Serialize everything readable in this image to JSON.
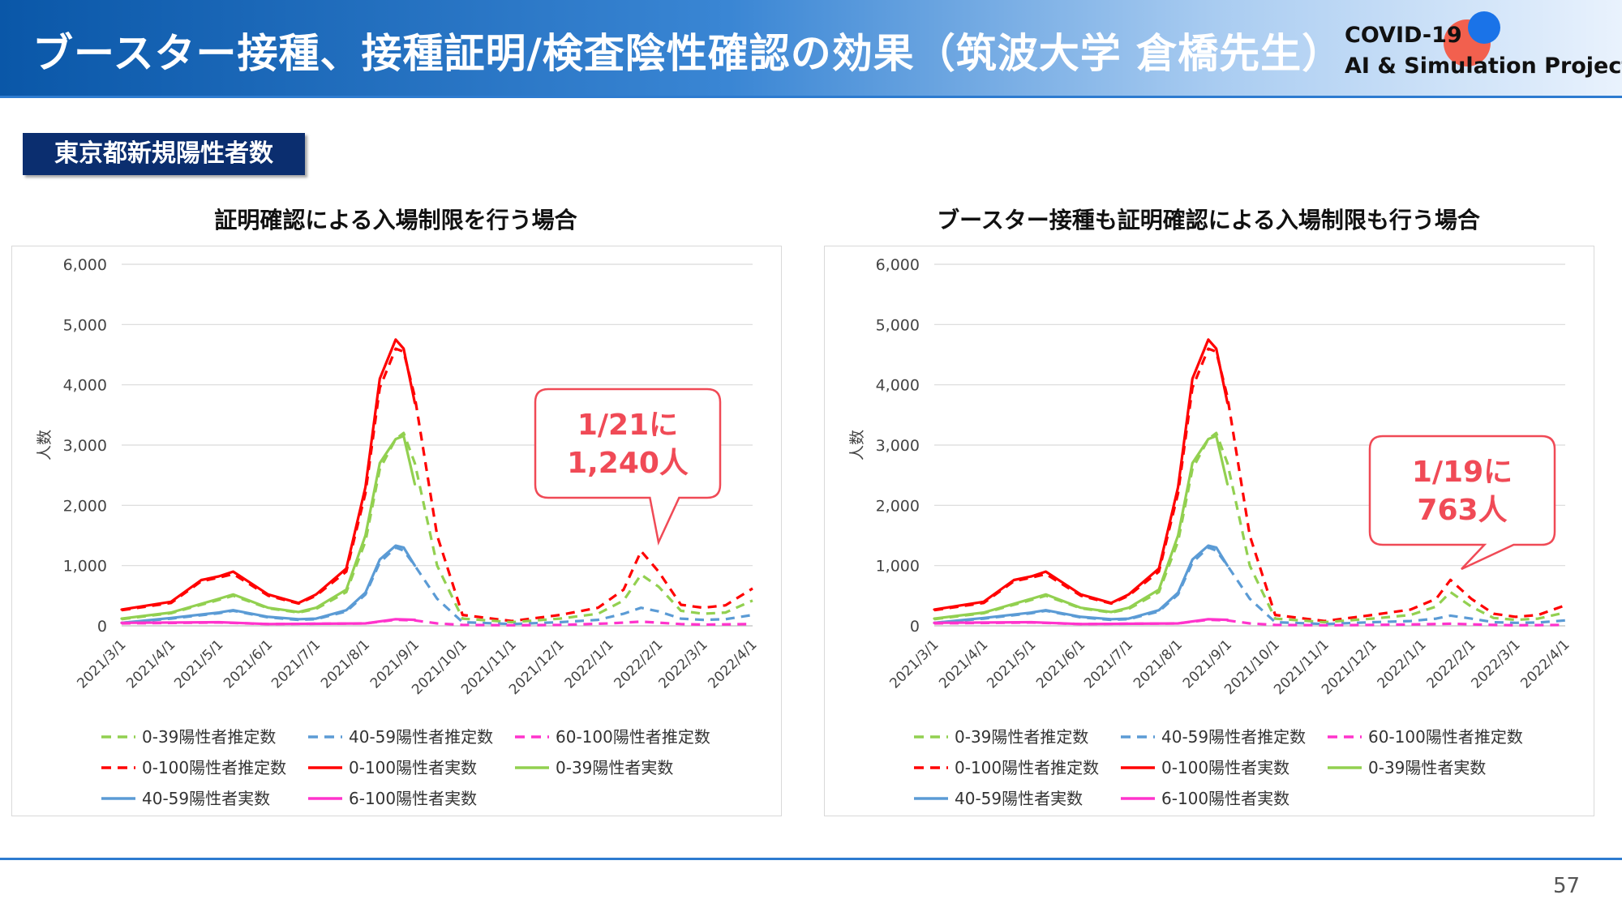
{
  "slide": {
    "title": "ブースター接種、接種証明/検査陰性確認の効果（筑波大学 倉橋先生）",
    "logo_line1": "COVID-19",
    "logo_line2": "AI & Simulation Project",
    "section_label": "東京都新規陽性者数",
    "page_number": "57"
  },
  "colors": {
    "green": "#92d050",
    "blue": "#5b9bd5",
    "magenta": "#ff33cc",
    "red": "#ff0000",
    "callout_border": "#f04a56",
    "callout_text": "#f04a56"
  },
  "legend": [
    {
      "label": "0-39陽性者推定数",
      "color": "#92d050",
      "style": "dashed"
    },
    {
      "label": "40-59陽性者推定数",
      "color": "#5b9bd5",
      "style": "dashed"
    },
    {
      "label": "60-100陽性者推定数",
      "color": "#ff33cc",
      "style": "dashed"
    },
    {
      "label": "0-100陽性者推定数",
      "color": "#ff0000",
      "style": "dashed"
    },
    {
      "label": "0-100陽性者実数",
      "color": "#ff0000",
      "style": "solid"
    },
    {
      "label": "0-39陽性者実数",
      "color": "#92d050",
      "style": "solid"
    },
    {
      "label": "40-59陽性者実数",
      "color": "#5b9bd5",
      "style": "solid"
    },
    {
      "label": "6-100陽性者実数",
      "color": "#ff33cc",
      "style": "solid"
    }
  ],
  "chart_data": [
    {
      "type": "line",
      "title": "証明確認による入場制限を行う場合",
      "ylabel": "人数",
      "ylim": [
        0,
        6000
      ],
      "yticks": [
        "0",
        "1,000",
        "2,000",
        "3,000",
        "4,000",
        "5,000",
        "6,000"
      ],
      "xticks": [
        "2021/3/1",
        "2021/4/1",
        "2021/5/1",
        "2021/6/1",
        "2021/7/1",
        "2021/8/1",
        "2021/9/1",
        "2021/10/1",
        "2021/11/1",
        "2021/12/1",
        "2022/1/1",
        "2022/2/1",
        "2022/3/1",
        "2022/4/1"
      ],
      "callout": {
        "line1": "1/21に",
        "line2": "1,240人",
        "date": "2022/1/21",
        "value": 1240
      },
      "series": [
        {
          "name": "0-100陽性者実数",
          "style": "solid",
          "color": "#ff0000",
          "x": [
            "2021/3/1",
            "2021/4/1",
            "2021/4/20",
            "2021/5/1",
            "2021/5/10",
            "2021/6/1",
            "2021/6/20",
            "2021/7/1",
            "2021/7/20",
            "2021/8/1",
            "2021/8/10",
            "2021/8/20",
            "2021/8/25",
            "2021/9/1"
          ],
          "y": [
            270,
            400,
            760,
            820,
            900,
            520,
            380,
            520,
            950,
            2300,
            4100,
            4750,
            4600,
            3700
          ]
        },
        {
          "name": "0-39陽性者実数",
          "style": "solid",
          "color": "#92d050",
          "x": [
            "2021/3/1",
            "2021/4/1",
            "2021/5/1",
            "2021/5/10",
            "2021/6/1",
            "2021/6/20",
            "2021/7/1",
            "2021/7/20",
            "2021/8/1",
            "2021/8/10",
            "2021/8/20",
            "2021/8/25",
            "2021/9/1"
          ],
          "y": [
            120,
            220,
            450,
            520,
            300,
            230,
            300,
            600,
            1500,
            2700,
            3100,
            3150,
            2350
          ]
        },
        {
          "name": "40-59陽性者実数",
          "style": "solid",
          "color": "#5b9bd5",
          "x": [
            "2021/3/1",
            "2021/4/1",
            "2021/5/1",
            "2021/5/10",
            "2021/6/1",
            "2021/6/20",
            "2021/7/1",
            "2021/7/20",
            "2021/8/1",
            "2021/8/10",
            "2021/8/20",
            "2021/8/25",
            "2021/9/1"
          ],
          "y": [
            50,
            130,
            220,
            260,
            150,
            110,
            120,
            260,
            550,
            1100,
            1330,
            1300,
            1000
          ]
        },
        {
          "name": "6-100陽性者実数",
          "style": "solid",
          "color": "#ff33cc",
          "x": [
            "2021/3/1",
            "2021/5/1",
            "2021/6/1",
            "2021/8/1",
            "2021/8/20",
            "2021/9/1"
          ],
          "y": [
            50,
            60,
            30,
            40,
            110,
            100
          ]
        },
        {
          "name": "0-100陽性者推定数",
          "style": "dashed",
          "color": "#ff0000",
          "x": [
            "2021/3/1",
            "2021/4/1",
            "2021/4/20",
            "2021/5/1",
            "2021/5/10",
            "2021/6/1",
            "2021/6/20",
            "2021/7/1",
            "2021/7/20",
            "2021/8/1",
            "2021/8/10",
            "2021/8/20",
            "2021/8/25",
            "2021/9/1",
            "2021/9/15",
            "2021/10/1",
            "2021/11/1",
            "2021/12/1",
            "2021/12/25",
            "2022/1/10",
            "2022/1/21",
            "2022/2/1",
            "2022/2/15",
            "2022/3/1",
            "2022/3/15",
            "2022/4/1"
          ],
          "y": [
            260,
            380,
            740,
            800,
            860,
            500,
            370,
            500,
            900,
            2200,
            3950,
            4600,
            4550,
            3800,
            1500,
            180,
            80,
            180,
            300,
            600,
            1240,
            900,
            350,
            300,
            340,
            620
          ]
        },
        {
          "name": "0-39陽性者推定数",
          "style": "dashed",
          "color": "#92d050",
          "x": [
            "2021/3/1",
            "2021/4/1",
            "2021/5/1",
            "2021/5/10",
            "2021/6/1",
            "2021/6/20",
            "2021/7/1",
            "2021/7/20",
            "2021/8/1",
            "2021/8/10",
            "2021/8/20",
            "2021/8/25",
            "2021/9/1",
            "2021/9/15",
            "2021/10/1",
            "2021/11/1",
            "2021/12/1",
            "2021/12/25",
            "2022/1/10",
            "2022/1/21",
            "2022/2/1",
            "2022/2/15",
            "2022/3/1",
            "2022/3/15",
            "2022/4/1"
          ],
          "y": [
            110,
            210,
            430,
            500,
            290,
            220,
            280,
            560,
            1400,
            2600,
            3100,
            3200,
            2700,
            1000,
            120,
            60,
            120,
            200,
            420,
            850,
            650,
            250,
            200,
            220,
            420
          ]
        },
        {
          "name": "40-59陽性者推定数",
          "style": "dashed",
          "color": "#5b9bd5",
          "x": [
            "2021/3/1",
            "2021/4/1",
            "2021/5/1",
            "2021/5/10",
            "2021/6/1",
            "2021/6/20",
            "2021/7/1",
            "2021/7/20",
            "2021/8/1",
            "2021/8/10",
            "2021/8/20",
            "2021/8/25",
            "2021/9/1",
            "2021/9/15",
            "2021/10/1",
            "2021/11/1",
            "2021/12/1",
            "2021/12/25",
            "2022/1/10",
            "2022/1/21",
            "2022/2/1",
            "2022/2/15",
            "2022/3/1",
            "2022/3/15",
            "2022/4/1"
          ],
          "y": [
            50,
            120,
            210,
            250,
            140,
            100,
            110,
            240,
            520,
            1050,
            1300,
            1250,
            1000,
            450,
            60,
            30,
            60,
            100,
            200,
            300,
            240,
            120,
            100,
            110,
            180
          ]
        },
        {
          "name": "60-100陽性者推定数",
          "style": "dashed",
          "color": "#ff33cc",
          "x": [
            "2021/3/1",
            "2021/5/1",
            "2021/6/1",
            "2021/8/1",
            "2021/8/20",
            "2021/9/1",
            "2021/9/15",
            "2021/10/1",
            "2021/11/1",
            "2021/12/1",
            "2022/1/1",
            "2022/1/21",
            "2022/2/15",
            "2022/3/1",
            "2022/4/1"
          ],
          "y": [
            40,
            55,
            30,
            40,
            100,
            90,
            40,
            15,
            10,
            15,
            40,
            70,
            30,
            20,
            30
          ]
        }
      ]
    },
    {
      "type": "line",
      "title": "ブースター接種も証明確認による入場制限も行う場合",
      "ylabel": "人数",
      "ylim": [
        0,
        6000
      ],
      "yticks": [
        "0",
        "1,000",
        "2,000",
        "3,000",
        "4,000",
        "5,000",
        "6,000"
      ],
      "xticks": [
        "2021/3/1",
        "2021/4/1",
        "2021/5/1",
        "2021/6/1",
        "2021/7/1",
        "2021/8/1",
        "2021/9/1",
        "2021/10/1",
        "2021/11/1",
        "2021/12/1",
        "2022/1/1",
        "2022/2/1",
        "2022/3/1",
        "2022/4/1"
      ],
      "callout": {
        "line1": "1/19に",
        "line2": "763人",
        "date": "2022/1/19",
        "value": 763
      },
      "series": [
        {
          "name": "0-100陽性者実数",
          "style": "solid",
          "color": "#ff0000",
          "x": [
            "2021/3/1",
            "2021/4/1",
            "2021/4/20",
            "2021/5/1",
            "2021/5/10",
            "2021/6/1",
            "2021/6/20",
            "2021/7/1",
            "2021/7/20",
            "2021/8/1",
            "2021/8/10",
            "2021/8/20",
            "2021/8/25",
            "2021/9/1"
          ],
          "y": [
            270,
            400,
            760,
            820,
            900,
            520,
            380,
            520,
            950,
            2300,
            4100,
            4750,
            4600,
            3700
          ]
        },
        {
          "name": "0-39陽性者実数",
          "style": "solid",
          "color": "#92d050",
          "x": [
            "2021/3/1",
            "2021/4/1",
            "2021/5/1",
            "2021/5/10",
            "2021/6/1",
            "2021/6/20",
            "2021/7/1",
            "2021/7/20",
            "2021/8/1",
            "2021/8/10",
            "2021/8/20",
            "2021/8/25",
            "2021/9/1"
          ],
          "y": [
            120,
            220,
            450,
            520,
            300,
            230,
            300,
            600,
            1500,
            2700,
            3100,
            3150,
            2350
          ]
        },
        {
          "name": "40-59陽性者実数",
          "style": "solid",
          "color": "#5b9bd5",
          "x": [
            "2021/3/1",
            "2021/4/1",
            "2021/5/1",
            "2021/5/10",
            "2021/6/1",
            "2021/6/20",
            "2021/7/1",
            "2021/7/20",
            "2021/8/1",
            "2021/8/10",
            "2021/8/20",
            "2021/8/25",
            "2021/9/1"
          ],
          "y": [
            50,
            130,
            220,
            260,
            150,
            110,
            120,
            260,
            550,
            1100,
            1330,
            1300,
            1000
          ]
        },
        {
          "name": "6-100陽性者実数",
          "style": "solid",
          "color": "#ff33cc",
          "x": [
            "2021/3/1",
            "2021/5/1",
            "2021/6/1",
            "2021/8/1",
            "2021/8/20",
            "2021/9/1"
          ],
          "y": [
            50,
            60,
            30,
            40,
            110,
            100
          ]
        },
        {
          "name": "0-100陽性者推定数",
          "style": "dashed",
          "color": "#ff0000",
          "x": [
            "2021/3/1",
            "2021/4/1",
            "2021/4/20",
            "2021/5/1",
            "2021/5/10",
            "2021/6/1",
            "2021/6/20",
            "2021/7/1",
            "2021/7/20",
            "2021/8/1",
            "2021/8/10",
            "2021/8/20",
            "2021/8/25",
            "2021/9/1",
            "2021/9/15",
            "2021/10/1",
            "2021/11/1",
            "2021/12/1",
            "2021/12/25",
            "2022/1/10",
            "2022/1/19",
            "2022/2/1",
            "2022/2/15",
            "2022/3/1",
            "2022/3/15",
            "2022/4/1"
          ],
          "y": [
            260,
            380,
            740,
            800,
            860,
            500,
            370,
            500,
            900,
            2200,
            3950,
            4600,
            4550,
            3800,
            1500,
            180,
            80,
            180,
            270,
            450,
            763,
            450,
            200,
            150,
            180,
            340
          ]
        },
        {
          "name": "0-39陽性者推定数",
          "style": "dashed",
          "color": "#92d050",
          "x": [
            "2021/3/1",
            "2021/4/1",
            "2021/5/1",
            "2021/5/10",
            "2021/6/1",
            "2021/6/20",
            "2021/7/1",
            "2021/7/20",
            "2021/8/1",
            "2021/8/10",
            "2021/8/20",
            "2021/8/25",
            "2021/9/1",
            "2021/9/15",
            "2021/10/1",
            "2021/11/1",
            "2021/12/1",
            "2021/12/25",
            "2022/1/10",
            "2022/1/19",
            "2022/2/1",
            "2022/2/15",
            "2022/3/1",
            "2022/3/15",
            "2022/4/1"
          ],
          "y": [
            110,
            210,
            430,
            500,
            290,
            220,
            280,
            560,
            1400,
            2600,
            3100,
            3200,
            2700,
            1000,
            120,
            60,
            120,
            180,
            320,
            560,
            320,
            130,
            100,
            120,
            220
          ]
        },
        {
          "name": "40-59陽性者推定数",
          "style": "dashed",
          "color": "#5b9bd5",
          "x": [
            "2021/3/1",
            "2021/4/1",
            "2021/5/1",
            "2021/5/10",
            "2021/6/1",
            "2021/6/20",
            "2021/7/1",
            "2021/7/20",
            "2021/8/1",
            "2021/8/10",
            "2021/8/20",
            "2021/8/25",
            "2021/9/1",
            "2021/9/15",
            "2021/10/1",
            "2021/11/1",
            "2021/12/1",
            "2021/12/25",
            "2022/1/10",
            "2022/1/19",
            "2022/2/1",
            "2022/2/15",
            "2022/3/1",
            "2022/3/15",
            "2022/4/1"
          ],
          "y": [
            50,
            120,
            210,
            250,
            140,
            100,
            110,
            240,
            520,
            1050,
            1300,
            1250,
            1000,
            450,
            60,
            30,
            60,
            80,
            120,
            170,
            120,
            60,
            50,
            55,
            90
          ]
        },
        {
          "name": "60-100陽性者推定数",
          "style": "dashed",
          "color": "#ff33cc",
          "x": [
            "2021/3/1",
            "2021/5/1",
            "2021/6/1",
            "2021/8/1",
            "2021/8/20",
            "2021/9/1",
            "2021/9/15",
            "2021/10/1",
            "2021/11/1",
            "2021/12/1",
            "2022/1/1",
            "2022/1/19",
            "2022/2/15",
            "2022/3/1",
            "2022/4/1"
          ],
          "y": [
            40,
            55,
            30,
            40,
            100,
            90,
            40,
            15,
            10,
            15,
            25,
            35,
            15,
            10,
            15
          ]
        }
      ]
    }
  ]
}
